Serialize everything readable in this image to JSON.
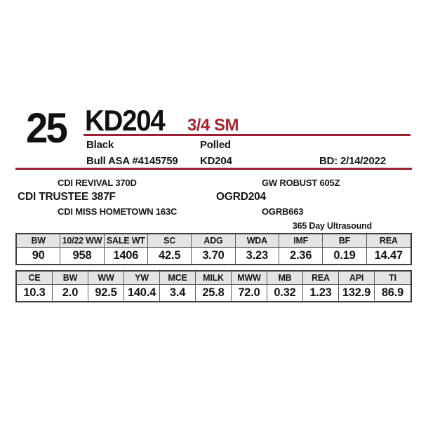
{
  "header": {
    "lot_number": "25",
    "animal_id": "KD204",
    "breed": "3/4 SM",
    "color": "Black",
    "horn_status": "Polled",
    "registration": "Bull ASA #4145759",
    "tattoo": "KD204",
    "birth_date": "BD: 2/14/2022"
  },
  "pedigree": {
    "sire": "CDI TRUSTEE 387F",
    "sire_sire": "CDI REVIVAL 370D",
    "sire_dam": "CDI MISS HOMETOWN 163C",
    "dam": "OGRD204",
    "dam_sire": "GW ROBUST 605Z",
    "dam_dam": "OGRB663"
  },
  "ultrasound_label": "365 Day Ultrasound",
  "performance_table": {
    "headers": [
      "BW",
      "10/22 WW",
      "SALE WT",
      "SC",
      "ADG",
      "WDA",
      "IMF",
      "BF",
      "REA"
    ],
    "values": [
      "90",
      "958",
      "1406",
      "42.5",
      "3.70",
      "3.23",
      "2.36",
      "0.19",
      "14.47"
    ]
  },
  "epd_table": {
    "headers": [
      "CE",
      "BW",
      "WW",
      "YW",
      "MCE",
      "MILK",
      "MWW",
      "MB",
      "REA",
      "API",
      "TI"
    ],
    "values": [
      "10.3",
      "2.0",
      "92.5",
      "140.4",
      "3.4",
      "25.8",
      "72.0",
      "0.32",
      "1.23",
      "132.9",
      "86.9"
    ]
  },
  "colors": {
    "accent_red_text": "#a2242f",
    "accent_red_rule": "#9b2033",
    "table_header_bg": "#e4e4e2",
    "table_border": "#3e3e3e"
  }
}
